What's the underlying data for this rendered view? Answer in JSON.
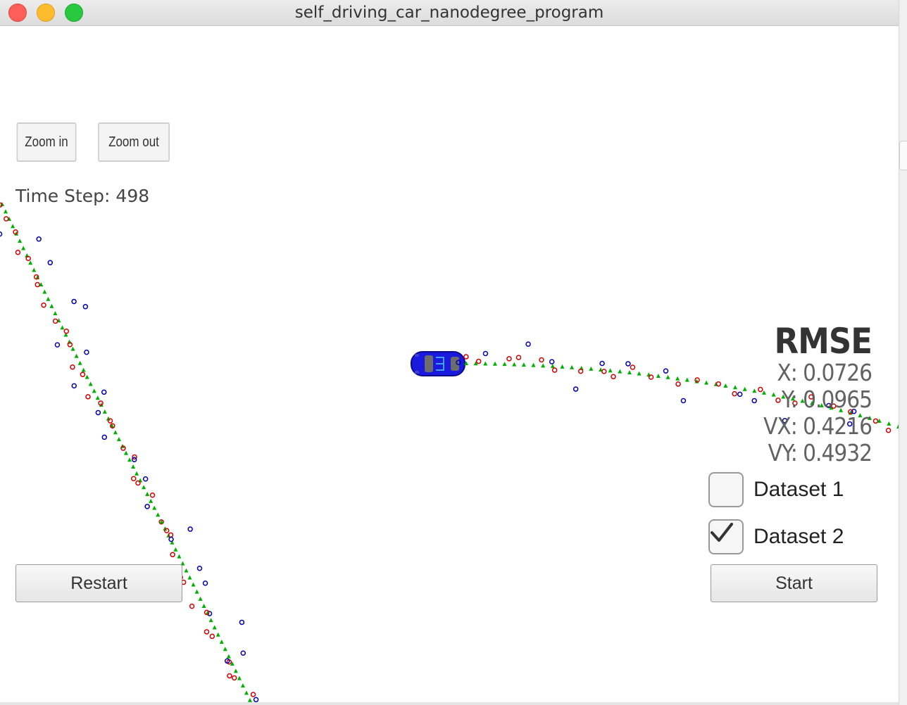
{
  "window": {
    "title": "self_driving_car_nanodegree_program"
  },
  "toolbar": {
    "zoom_in_label": "Zoom in",
    "zoom_out_label": "Zoom out"
  },
  "status": {
    "time_step_label": "Time Step:",
    "time_step_value": "498",
    "time_step_text": "Time Step: 498"
  },
  "rmse": {
    "title": "RMSE",
    "x": "X: 0.0726",
    "y": "Y: 0.0965",
    "vx": "VX: 0.4216",
    "vy": "VY: 0.4932"
  },
  "datasets": [
    {
      "label": "Dataset 1",
      "checked": false
    },
    {
      "label": "Dataset 2",
      "checked": true
    }
  ],
  "buttons": {
    "restart_label": "Restart",
    "start_label": "Start"
  },
  "colors": {
    "lidar": "#d40000",
    "radar": "#0000b0",
    "estimate": "#00b000",
    "car": "#1a1adf"
  },
  "icons": {
    "car": "car-icon",
    "checkmark": "checkmark-icon"
  }
}
